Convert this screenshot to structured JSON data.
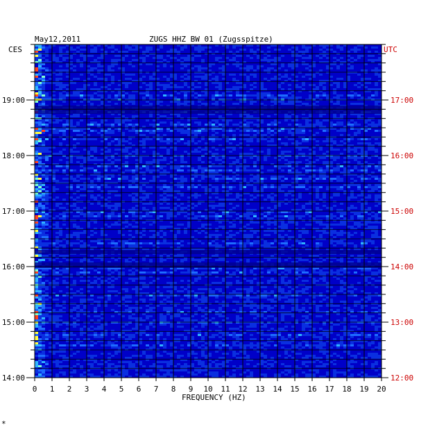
{
  "chart_data": {
    "type": "heatmap",
    "title_date": "May12,2011",
    "title_station": "ZUGS HHZ BW 01 (Zugsspitze)",
    "xlabel": "FREQUENCY (HZ)",
    "x_ticks": [
      "0",
      "1",
      "2",
      "3",
      "4",
      "5",
      "6",
      "7",
      "8",
      "9",
      "10",
      "11",
      "12",
      "13",
      "14",
      "15",
      "16",
      "17",
      "18",
      "19",
      "20"
    ],
    "xlim": [
      0,
      20
    ],
    "left_axis_label": "CES",
    "right_axis_label": "UTC",
    "left_time_ticks": [
      "14:00",
      "15:00",
      "16:00",
      "17:00",
      "18:00",
      "19:00"
    ],
    "right_time_ticks": [
      "12:00",
      "13:00",
      "14:00",
      "15:00",
      "16:00",
      "17:00"
    ],
    "colors": {
      "background": "#0000c8",
      "utc_text": "#cc0000",
      "grid": "#000000"
    }
  },
  "footer_mark": "*"
}
